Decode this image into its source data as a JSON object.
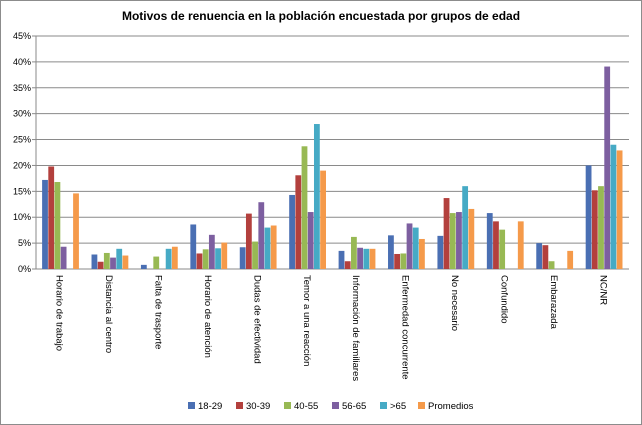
{
  "chart_data": {
    "type": "bar",
    "title": "Motivos de renuencia en la población encuestada por grupos de edad",
    "xlabel": "",
    "ylabel": "",
    "ylim": [
      0,
      45
    ],
    "yticks": [
      0,
      5,
      10,
      15,
      20,
      25,
      30,
      35,
      40,
      45
    ],
    "ytick_format": "%",
    "grid": true,
    "legend_position": "bottom",
    "categories": [
      "Horario de trabajo",
      "Distancia al centro",
      "Falta de trasporte",
      "Horario de atención",
      "Dudas de efectividad",
      "Temor a una reacción",
      "Información de familiares",
      "Enfermedad concurrente",
      "No necesario",
      "Confundido",
      "Embarazada",
      "NC/NR"
    ],
    "series": [
      {
        "name": "18-29",
        "color": "#4a6fb3",
        "values": [
          17.2,
          2.8,
          0.8,
          8.6,
          4.2,
          14.3,
          3.5,
          6.5,
          6.4,
          10.8,
          5.0,
          20.0
        ]
      },
      {
        "name": "30-39",
        "color": "#b3403d",
        "values": [
          19.8,
          1.4,
          0,
          3.0,
          10.7,
          18.1,
          1.5,
          2.9,
          13.7,
          9.2,
          4.6,
          15.2
        ]
      },
      {
        "name": "40-55",
        "color": "#98b954",
        "values": [
          16.8,
          3.1,
          2.4,
          3.8,
          5.3,
          23.7,
          6.2,
          3.0,
          10.8,
          7.6,
          1.5,
          16.0
        ]
      },
      {
        "name": "56-65",
        "color": "#7d5fa0",
        "values": [
          4.3,
          2.2,
          0,
          6.6,
          12.9,
          11.0,
          4.1,
          8.8,
          11.0,
          0,
          0,
          39.1
        ]
      },
      {
        "name": ">65",
        "color": "#46aac5",
        "values": [
          0,
          3.9,
          3.9,
          4.0,
          8.0,
          28.0,
          3.9,
          8.0,
          16.0,
          0,
          0,
          24.0
        ]
      },
      {
        "name": "Promedios",
        "color": "#f59a4a",
        "values": [
          14.6,
          2.6,
          4.3,
          5.1,
          8.4,
          19.0,
          3.9,
          5.8,
          11.6,
          9.2,
          3.5,
          22.9
        ]
      }
    ]
  }
}
